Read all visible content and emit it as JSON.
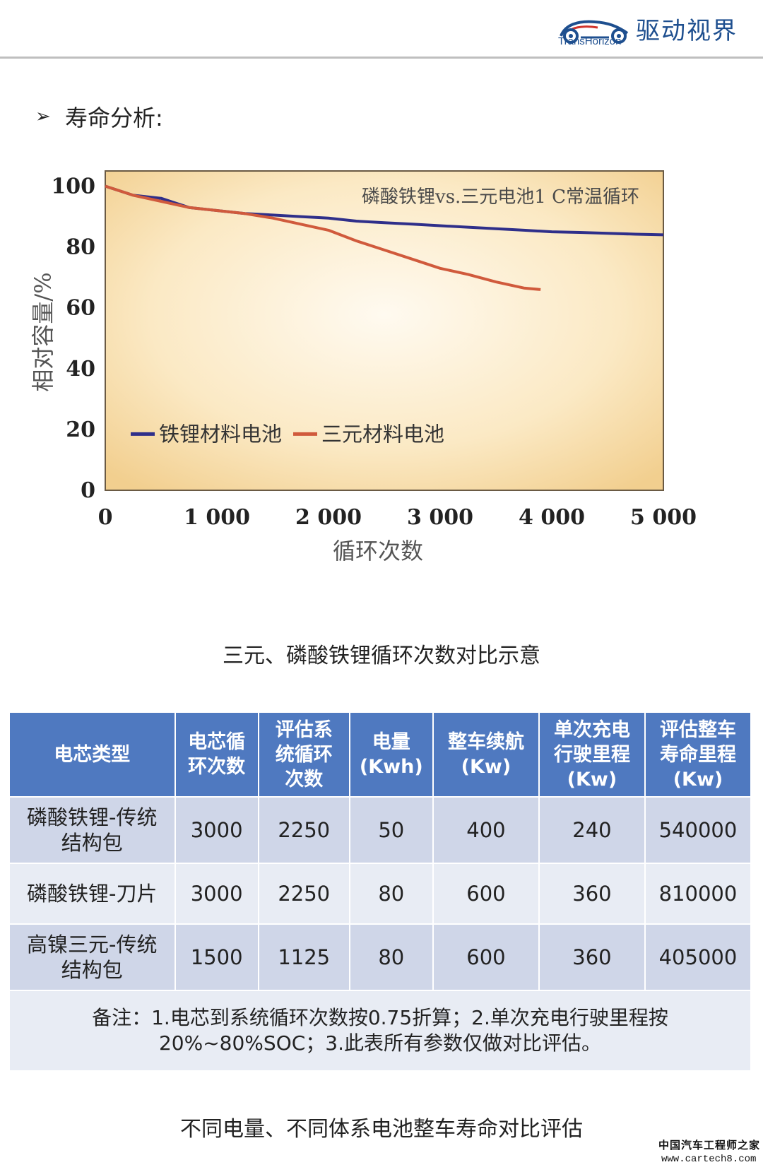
{
  "header": {
    "logo_latin": "TransHorizon",
    "logo_cn": "驱动视界",
    "accent_color": "#1e4f8f"
  },
  "section": {
    "bullet": "➢",
    "title": "寿命分析:"
  },
  "chart_data": {
    "type": "line",
    "title": "磷酸铁锂vs.三元电池1 C常温循环",
    "xlabel": "循环次数",
    "ylabel": "相对容量/%",
    "xlim": [
      0,
      5000
    ],
    "ylim": [
      0,
      105
    ],
    "x_ticks": [
      0,
      1000,
      2000,
      3000,
      4000,
      5000
    ],
    "x_tick_labels": [
      "0",
      "1 000",
      "2 000",
      "3 000",
      "4 000",
      "5 000"
    ],
    "y_ticks": [
      0,
      20,
      40,
      60,
      80,
      100
    ],
    "y_tick_labels": [
      "0",
      "20",
      "40",
      "60",
      "80",
      "100"
    ],
    "grid": false,
    "legend_position": "bottom-left",
    "background": "radial-warm-gradient",
    "series": [
      {
        "name": "铁锂材料电池",
        "color": "#2f2f8a",
        "x": [
          0,
          250,
          500,
          750,
          1000,
          1250,
          1500,
          1750,
          2000,
          2250,
          2500,
          2750,
          3000,
          3250,
          3500,
          3750,
          4000,
          4250,
          4500,
          4750,
          5000
        ],
        "y": [
          100,
          97,
          96,
          93,
          92,
          91,
          90.5,
          90,
          89.5,
          88.5,
          88,
          87.5,
          87,
          86.5,
          86,
          85.5,
          85,
          84.8,
          84.5,
          84.2,
          84
        ]
      },
      {
        "name": "三元材料电池",
        "color": "#d05a3c",
        "x": [
          0,
          250,
          500,
          750,
          1000,
          1250,
          1500,
          1750,
          2000,
          2250,
          2500,
          2750,
          3000,
          3250,
          3500,
          3750,
          3900
        ],
        "y": [
          100,
          97,
          95,
          93,
          92,
          91,
          89.5,
          87.5,
          85.5,
          82,
          79,
          76,
          73,
          71,
          68.5,
          66.5,
          66
        ]
      }
    ]
  },
  "captions": {
    "chart": "三元、磷酸铁锂循环次数对比示意",
    "table": "不同电量、不同体系电池整车寿命对比评估"
  },
  "table": {
    "headers": [
      [
        "电芯类型"
      ],
      [
        "电芯循",
        "环次数"
      ],
      [
        "评估系",
        "统循环",
        "次数"
      ],
      [
        "电量",
        "(Kwh)"
      ],
      [
        "整车续航",
        "(Kw)"
      ],
      [
        "单次充电",
        "行驶里程",
        "(Kw)"
      ],
      [
        "评估整车",
        "寿命里程",
        "(Kw)"
      ]
    ],
    "rows": [
      {
        "type": [
          "磷酸铁锂-传统",
          "结构包"
        ],
        "cell_cycles": "3000",
        "system_cycles": "2250",
        "capacity": "50",
        "range": "400",
        "single_charge": "240",
        "lifetime": "540000"
      },
      {
        "type": [
          "磷酸铁锂-刀片"
        ],
        "cell_cycles": "3000",
        "system_cycles": "2250",
        "capacity": "80",
        "range": "600",
        "single_charge": "360",
        "lifetime": "810000"
      },
      {
        "type": [
          "高镍三元-传统",
          "结构包"
        ],
        "cell_cycles": "1500",
        "system_cycles": "1125",
        "capacity": "80",
        "range": "600",
        "single_charge": "360",
        "lifetime": "405000"
      }
    ],
    "note": [
      "备注：1.电芯到系统循环次数按0.75折算；2.单次充电行驶里程按",
      "20%~80%SOC；3.此表所有参数仅做对比评估。"
    ]
  },
  "watermark": {
    "cn": "中国汽车工程师之家",
    "url": "www.cartech8.com"
  }
}
